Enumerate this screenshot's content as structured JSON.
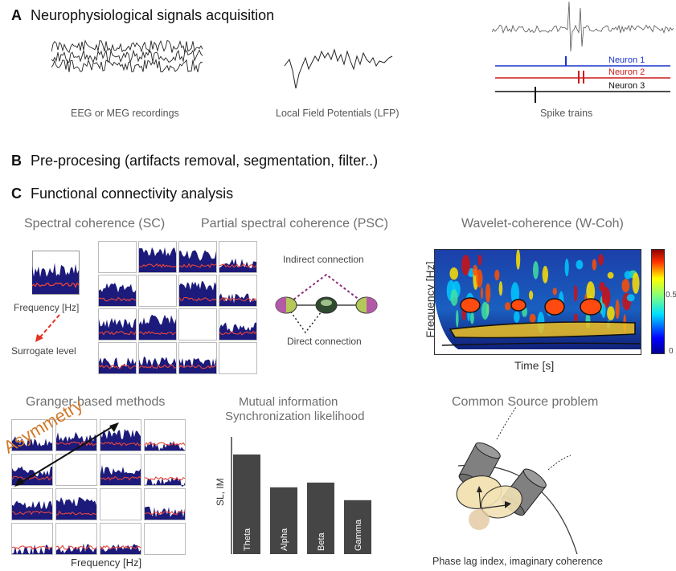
{
  "sectionA": {
    "letter": "A",
    "title": "Neurophysiological signals acquisition",
    "captions": [
      "EEG or MEG recordings",
      "Local Field Potentials (LFP)",
      "Spike trains"
    ],
    "neurons": [
      {
        "label": "Neuron 1",
        "color": "#1a33cc"
      },
      {
        "label": "Neuron 2",
        "color": "#cc1a1a"
      },
      {
        "label": "Neuron 3",
        "color": "#111111"
      }
    ]
  },
  "sectionB": {
    "letter": "B",
    "title": "Pre-procesing (artifacts removal, segmentation, filter..)"
  },
  "sectionC": {
    "letter": "C",
    "title": "Functional connectivity analysis",
    "sc": {
      "title": "Spectral coherence (SC)",
      "freq_label": "Frequency [Hz]",
      "surrogate_label": "Surrogate level"
    },
    "psc": {
      "title": "Partial spectral coherence (PSC)",
      "indirect_label": "Indirect connection",
      "direct_label": "Direct connection"
    },
    "wcoh": {
      "title": "Wavelet-coherence (W-Coh)",
      "ylabel": "Frequency [Hz]",
      "xlabel": "Time [s]",
      "colorbar_ticks": [
        "0.5",
        "0"
      ]
    },
    "granger": {
      "title": "Granger-based methods",
      "asymmetry_label": "Asymmetry",
      "xlabel": "Frequency [Hz]"
    },
    "mi": {
      "title_line1": "Mutual information",
      "title_line2": "Synchronization likelihood",
      "chart_data": {
        "type": "bar",
        "categories": [
          "Theta",
          "Alpha",
          "Beta",
          "Gamma"
        ],
        "values": [
          0.85,
          0.57,
          0.61,
          0.46
        ],
        "ylabel": "SL, IM",
        "ylim": [
          0,
          1
        ]
      }
    },
    "common": {
      "title": "Common Source problem",
      "caption": "Phase lag index, imaginary coherence"
    }
  },
  "colors": {
    "spectrum_fill": "#1c1a7a",
    "surrogate_line": "#e8453c",
    "bar_fill": "#454545",
    "mi_purple": "#8a2a7a",
    "asymmetry": "#d2792a"
  }
}
